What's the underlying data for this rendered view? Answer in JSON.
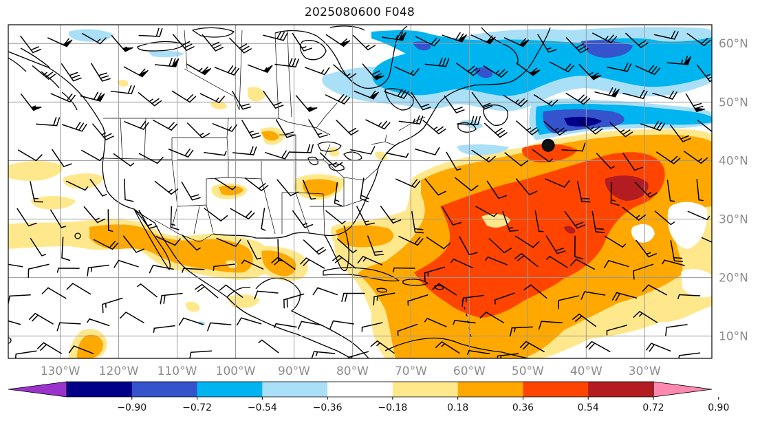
{
  "title": "2025080600 F048",
  "map": {
    "lon_ticks": [
      "130°W",
      "120°W",
      "110°W",
      "100°W",
      "90°W",
      "80°W",
      "70°W",
      "60°W",
      "50°W",
      "40°W",
      "30°W"
    ],
    "lat_ticks": [
      "60°N",
      "50°N",
      "40°N",
      "30°N",
      "20°N",
      "10°N"
    ],
    "grid": true,
    "marker": {
      "lon": -46.5,
      "lat": 42.6,
      "name": "marker-dot"
    }
  },
  "colorbar": {
    "labels": [
      "−0.90",
      "−0.72",
      "−0.54",
      "−0.36",
      "−0.18",
      "0.18",
      "0.36",
      "0.54",
      "0.72",
      "0.90"
    ],
    "colors": [
      "#9a33cc",
      "#000088",
      "#3553cc",
      "#00b4f0",
      "#aadff8",
      "#ffffff",
      "#ffe88c",
      "#ffa800",
      "#ff4400",
      "#b31c20",
      "#ff88b0"
    ]
  }
}
